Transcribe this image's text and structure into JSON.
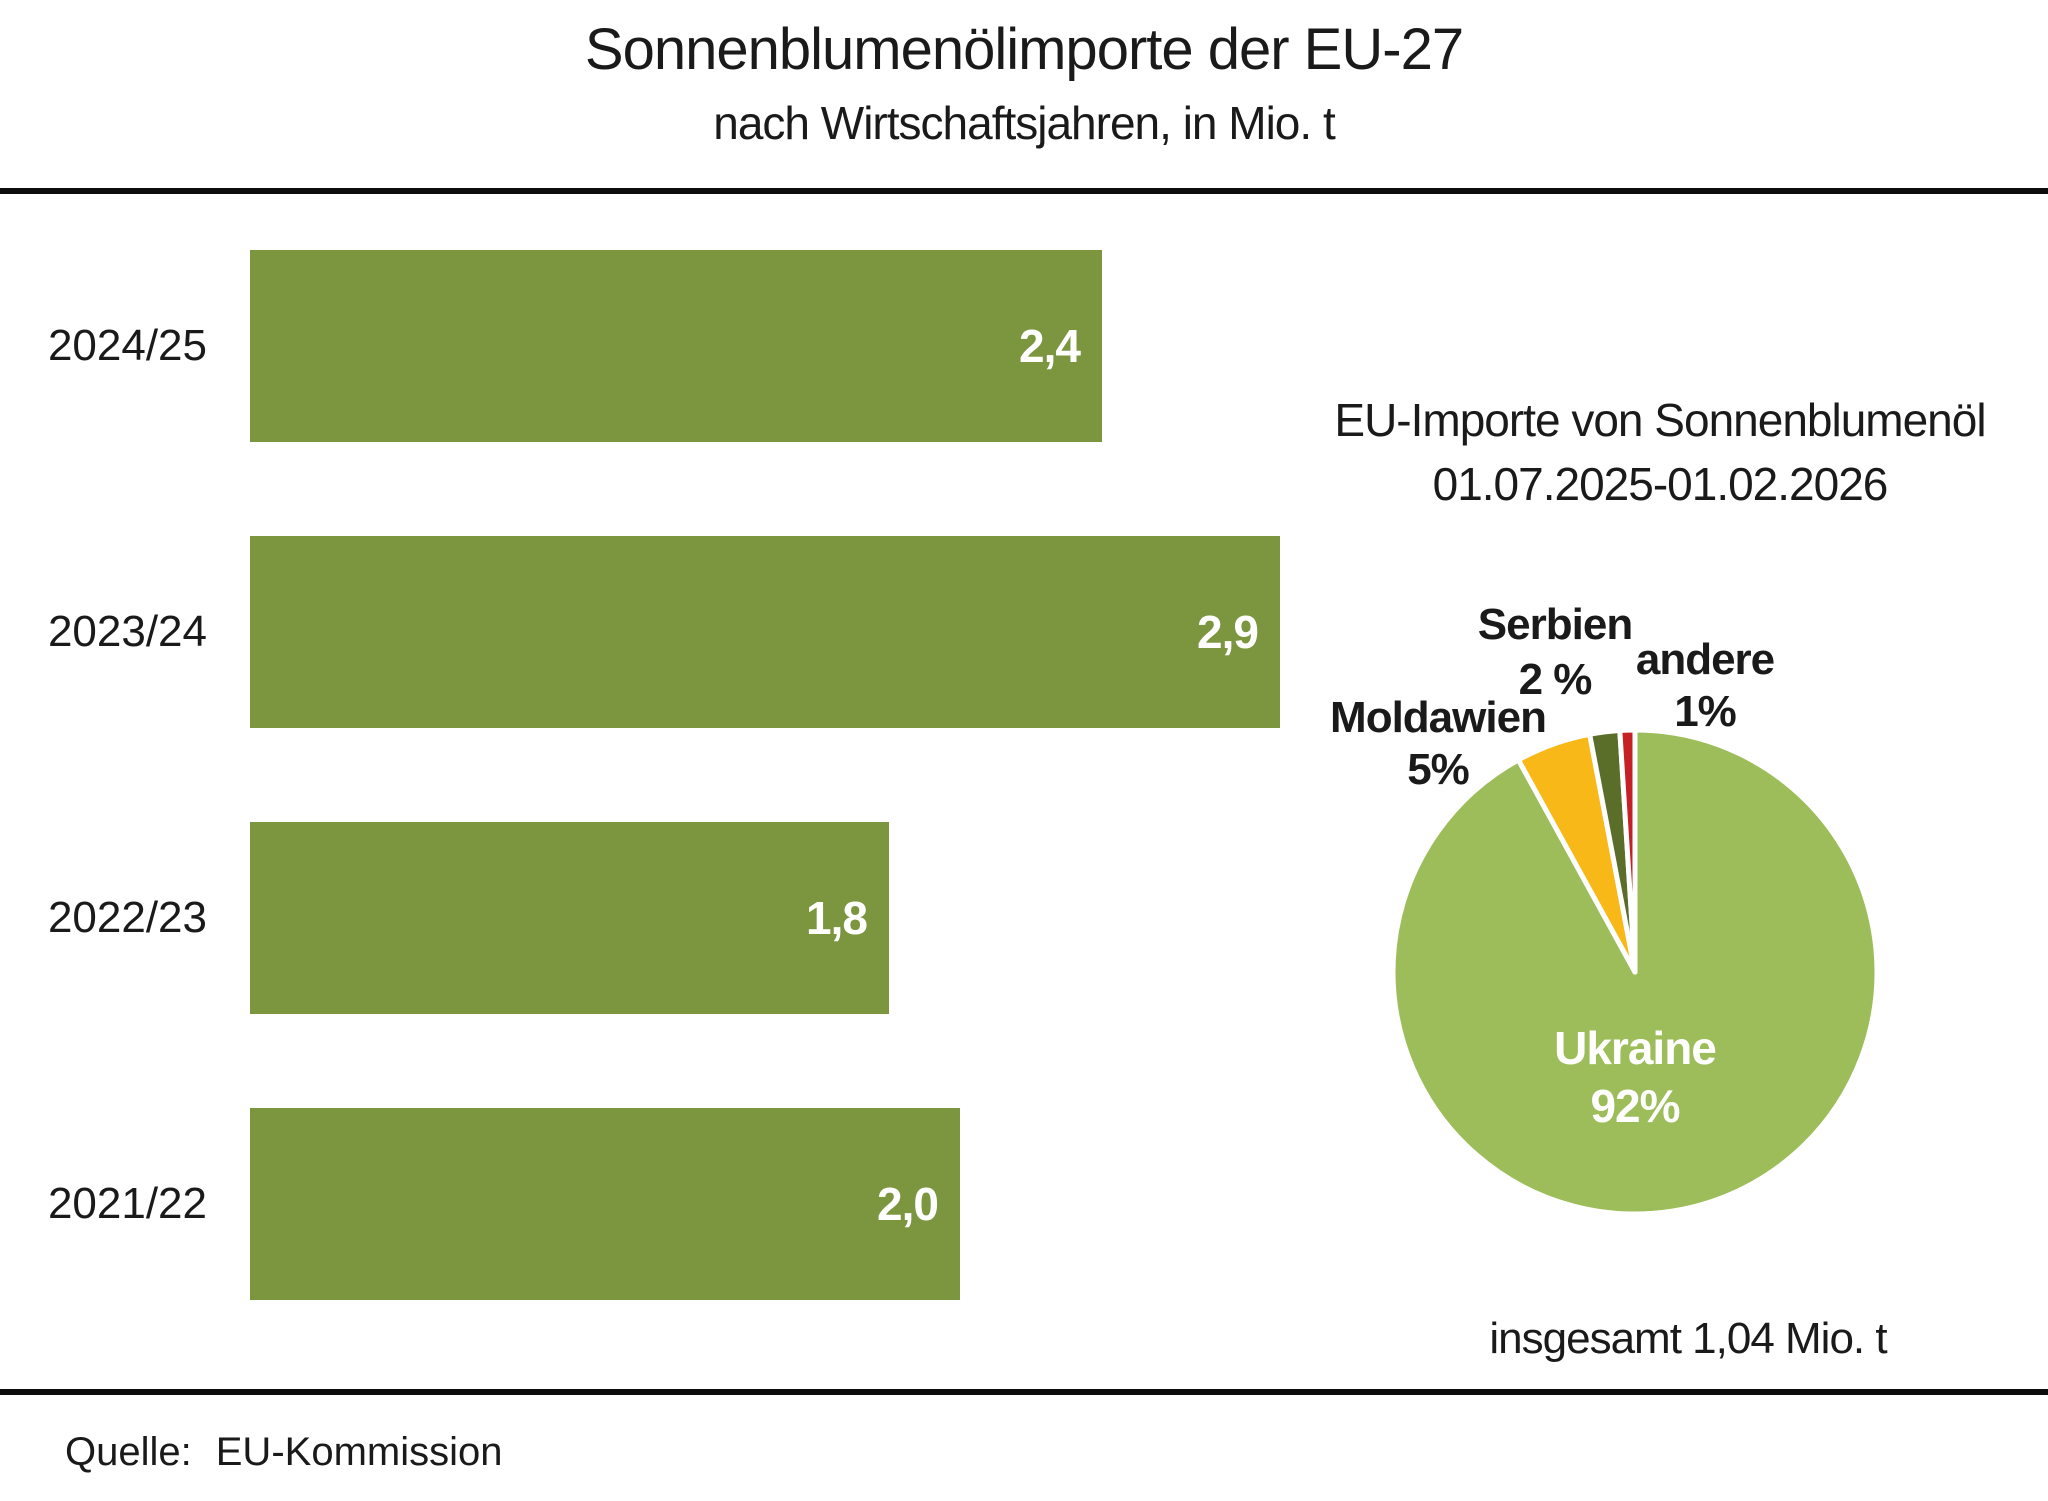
{
  "title": "Sonnenblumenölimporte der EU-27",
  "subtitle": "nach Wirtschaftsjahren, in Mio. t",
  "source": {
    "label": "Quelle:",
    "value": "EU-Kommission"
  },
  "pie_panel": {
    "header_line1": "EU-Importe von Sonnenblumenöl",
    "header_line2": "01.07.2025-01.02.2026",
    "total_note": "insgesamt 1,04 Mio. t"
  },
  "colors": {
    "bar": "#7C953F",
    "pie_ukraine": "#9CBD59",
    "pie_moldawien": "#F8B817",
    "pie_serbien": "#5A6E2A",
    "pie_andere": "#C62026",
    "text": "#1A1A1A",
    "value_label": "#FFFFFF",
    "divider": "#0D0D0D",
    "slice_gap": "#FFFFFF"
  },
  "chart_data": [
    {
      "type": "bar",
      "orientation": "horizontal",
      "title": "Sonnenblumenölimporte der EU-27 nach Wirtschaftsjahren",
      "unit": "Mio. t",
      "categories": [
        "2024/25",
        "2023/24",
        "2022/23",
        "2021/22"
      ],
      "values": [
        2.4,
        2.9,
        1.8,
        2.0
      ],
      "value_labels": [
        "2,4",
        "2,9",
        "1,8",
        "2,0"
      ],
      "xlim": [
        0,
        2.9
      ],
      "grid": false,
      "bar_color": "#7C953F"
    },
    {
      "type": "pie",
      "title": "EU-Importe von Sonnenblumenöl 01.07.2025-01.02.2026",
      "total_label": "insgesamt 1,04 Mio. t",
      "direction": "clockwise",
      "start_angle_deg": 0,
      "slices": [
        {
          "label": "Ukraine",
          "value_pct": 92,
          "pct_label": "92%",
          "color": "#9CBD59",
          "label_inside": true
        },
        {
          "label": "Moldawien",
          "value_pct": 5,
          "pct_label": "5%",
          "color": "#F8B817",
          "label_inside": false
        },
        {
          "label": "Serbien",
          "value_pct": 2,
          "pct_label": "2 %",
          "color": "#5A6E2A",
          "label_inside": false
        },
        {
          "label": "andere",
          "value_pct": 1,
          "pct_label": "1%",
          "color": "#C62026",
          "label_inside": false
        }
      ]
    }
  ]
}
